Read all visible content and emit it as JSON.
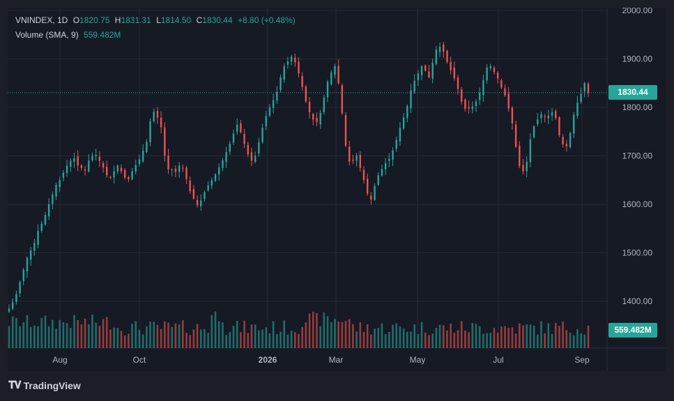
{
  "legend": {
    "symbol": "VNINDEX, 1D",
    "o_label": "O",
    "o_value": "1820.75",
    "h_label": "H",
    "h_value": "1831.31",
    "l_label": "L",
    "l_value": "1814.50",
    "c_label": "C",
    "c_value": "1830.44",
    "change": "+8.80 (+0.48%)",
    "volume_label": "Volume (SMA, 9)",
    "volume_value": "559.482M"
  },
  "price_tag": "1830.44",
  "volume_tag": "559.482M",
  "branding": "TradingView",
  "colors": {
    "up": "#26a69a",
    "down": "#ef5350",
    "background": "#161a25",
    "grid": "#252a36",
    "text": "#b2b5be"
  },
  "chart_data": {
    "type": "candlestick",
    "y_axis": {
      "ticks": [
        1400,
        1500,
        1600,
        1700,
        1800,
        1900,
        2000
      ],
      "tick_labels": [
        "1400.00",
        "1500.00",
        "1600.00",
        "1700.00",
        "1800.00",
        "1900.00",
        "2000.00"
      ],
      "range": [
        1375,
        2000
      ],
      "position": "right"
    },
    "x_axis": {
      "tick_labels": [
        "Aug",
        "Oct",
        "2026",
        "Mar",
        "May",
        "Jul",
        "Sep"
      ]
    },
    "last_close": 1830.44,
    "grid": true,
    "series_closes": [
      1385,
      1398,
      1415,
      1440,
      1465,
      1490,
      1505,
      1520,
      1545,
      1560,
      1578,
      1600,
      1620,
      1640,
      1650,
      1665,
      1680,
      1690,
      1695,
      1680,
      1675,
      1670,
      1690,
      1700,
      1702,
      1690,
      1676,
      1660,
      1655,
      1668,
      1680,
      1668,
      1655,
      1652,
      1668,
      1681,
      1693,
      1711,
      1729,
      1771,
      1791,
      1779,
      1759,
      1700,
      1672,
      1672,
      1667,
      1680,
      1674,
      1652,
      1627,
      1612,
      1598,
      1608,
      1625,
      1639,
      1650,
      1662,
      1676,
      1691,
      1708,
      1725,
      1746,
      1764,
      1749,
      1725,
      1703,
      1690,
      1700,
      1728,
      1758,
      1782,
      1800,
      1815,
      1832,
      1862,
      1885,
      1895,
      1905,
      1893,
      1870,
      1842,
      1812,
      1790,
      1775,
      1770,
      1789,
      1820,
      1853,
      1872,
      1885,
      1850,
      1788,
      1721,
      1688,
      1690,
      1701,
      1675,
      1650,
      1622,
      1610,
      1638,
      1660,
      1673,
      1685,
      1694,
      1711,
      1733,
      1758,
      1779,
      1803,
      1835,
      1855,
      1870,
      1885,
      1876,
      1862,
      1892,
      1919,
      1925,
      1915,
      1894,
      1877,
      1860,
      1838,
      1812,
      1797,
      1798,
      1802,
      1812,
      1830,
      1856,
      1882,
      1885,
      1873,
      1860,
      1841,
      1825,
      1798,
      1767,
      1719,
      1679,
      1668,
      1688,
      1734,
      1761,
      1775,
      1786,
      1781,
      1783,
      1790,
      1778,
      1743,
      1724,
      1720,
      1747,
      1785,
      1810,
      1828,
      1850,
      1830
    ]
  }
}
